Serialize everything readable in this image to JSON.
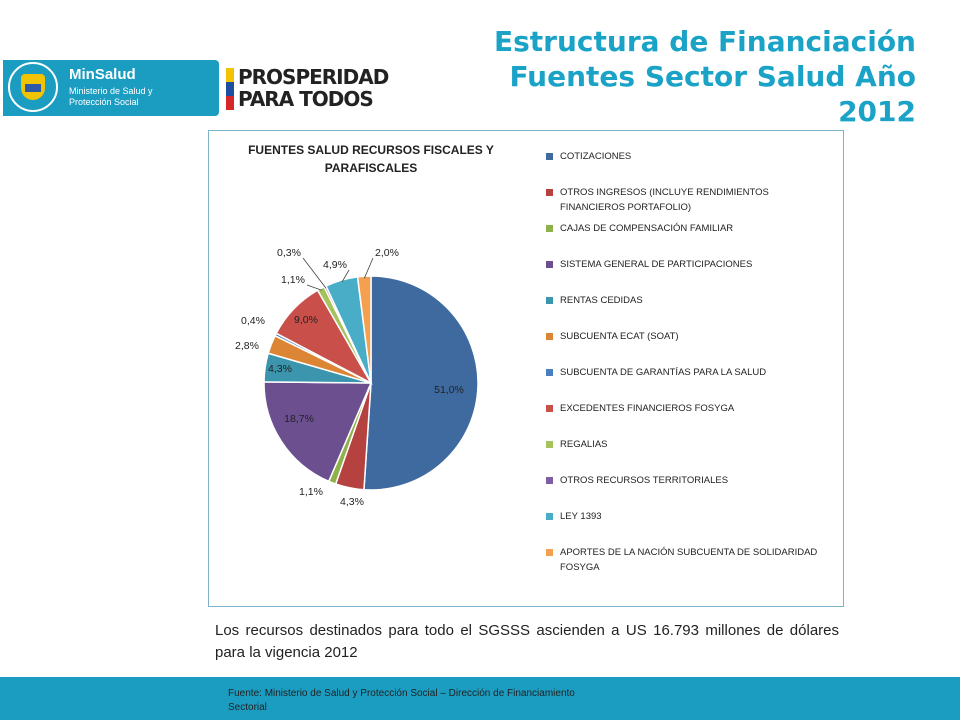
{
  "header": {
    "title_lines": [
      "Estructura de Financiación",
      "Fuentes Sector Salud Año",
      "2012"
    ]
  },
  "logos": {
    "minsalud_name": "MinSalud",
    "minsalud_sub": "Ministerio de Salud y Protección Social",
    "prosperidad_line1": "PROSPERIDAD",
    "prosperidad_line2": "PARA TODOS"
  },
  "chart_data": {
    "type": "pie",
    "title": "FUENTES SALUD RECURSOS FISCALES Y PARAFISCALES",
    "legend_position": "right",
    "categories": [
      "COTIZACIONES",
      "OTROS INGRESOS (INCLUYE RENDIMIENTOS FINANCIEROS PORTAFOLIO)",
      "CAJAS DE COMPENSACIÓN FAMILIAR",
      "SISTEMA GENERAL DE PARTICIPACIONES",
      "RENTAS CEDIDAS",
      "SUBCUENTA ECAT (SOAT)",
      "SUBCUENTA DE GARANTÍAS PARA LA SALUD",
      "EXCEDENTES FINANCIEROS FOSYGA",
      "REGALIAS",
      "OTROS RECURSOS TERRITORIALES",
      "LEY 1393",
      "APORTES DE LA NACIÓN SUBCUENTA DE SOLIDARIDAD FOSYGA"
    ],
    "values": [
      51.0,
      4.3,
      1.1,
      18.7,
      4.3,
      2.8,
      0.4,
      9.0,
      1.1,
      0.3,
      4.9,
      2.0
    ],
    "data_labels": [
      "51,0%",
      "4,3%",
      "1,1%",
      "18,7%",
      "4,3%",
      "2,8%",
      "0,4%",
      "9,0%",
      "1,1%",
      "0,3%",
      "4,9%",
      "2,0%"
    ],
    "colors": [
      "#3e6aa0",
      "#b5423e",
      "#8fb04a",
      "#6b4f8f",
      "#3b95ad",
      "#dc8534",
      "#4a7fbf",
      "#c9504a",
      "#a5c25c",
      "#7e5fa3",
      "#4aadc8",
      "#f4a050"
    ]
  },
  "body_text": "Los recursos  destinados para todo el SGSSS ascienden a US 16.793 millones de dólares para la vigencia 2012",
  "footer_text": "Fuente:  Ministerio de Salud y Protección Social – Dirección de Financiamiento Sectorial"
}
